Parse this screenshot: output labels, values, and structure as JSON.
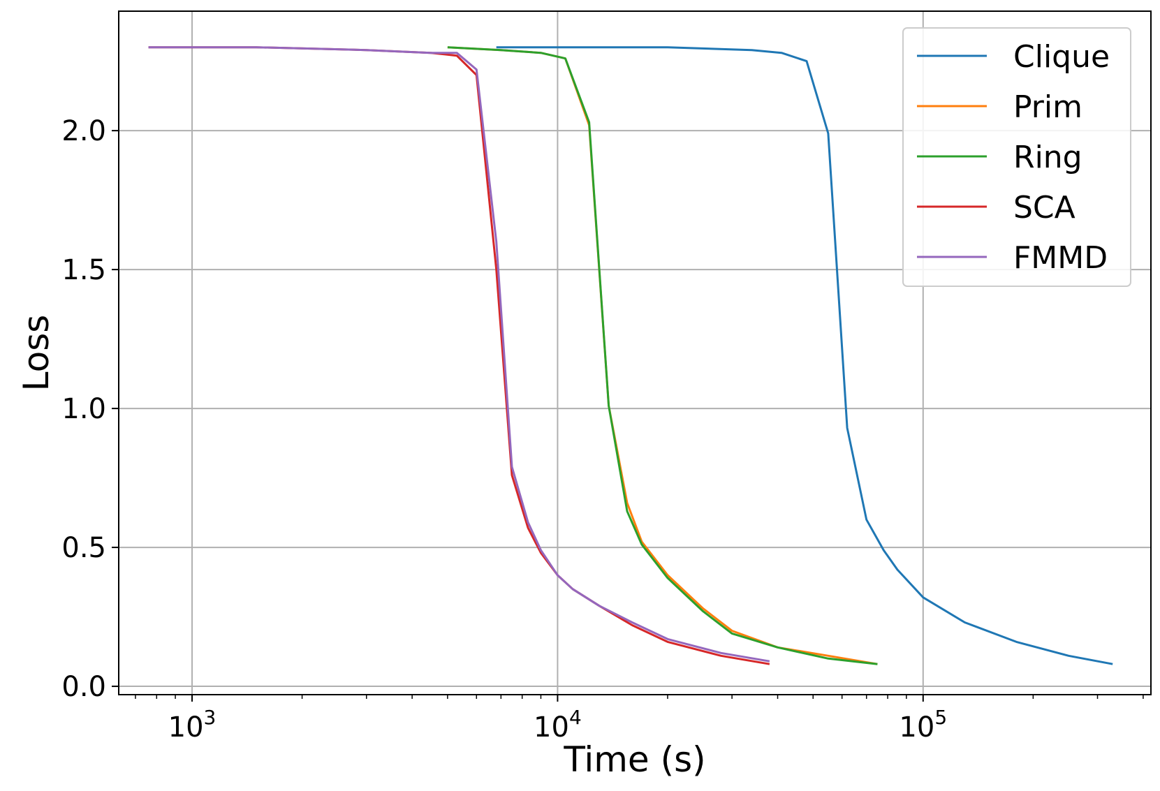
{
  "chart_data": {
    "type": "line",
    "title": "",
    "xlabel": "Time (s)",
    "ylabel": "Loss",
    "xscale": "log",
    "xlim": [
      630,
      420000
    ],
    "ylim": [
      -0.03,
      2.43
    ],
    "grid": true,
    "legend_position": "top-right",
    "x_ticks": [
      {
        "value": 1000,
        "base": "10",
        "exp": "3"
      },
      {
        "value": 10000,
        "base": "10",
        "exp": "4"
      },
      {
        "value": 100000,
        "base": "10",
        "exp": "5"
      }
    ],
    "y_ticks": [
      {
        "value": 0.0,
        "label": "0.0"
      },
      {
        "value": 0.5,
        "label": "0.5"
      },
      {
        "value": 1.0,
        "label": "1.0"
      },
      {
        "value": 1.5,
        "label": "1.5"
      },
      {
        "value": 2.0,
        "label": "2.0"
      }
    ],
    "series": [
      {
        "name": "Clique",
        "color": "#1f77b4",
        "x": [
          6800,
          10000,
          20000,
          34000,
          41000,
          48000,
          55000,
          62000,
          70000,
          78000,
          85000,
          100000,
          130000,
          180000,
          250000,
          330000
        ],
        "y": [
          2.3,
          2.3,
          2.3,
          2.29,
          2.28,
          2.25,
          1.99,
          0.93,
          0.6,
          0.49,
          0.42,
          0.32,
          0.23,
          0.16,
          0.11,
          0.08
        ]
      },
      {
        "name": "Prim",
        "color": "#ff7f0e",
        "x": [
          5000,
          7000,
          9000,
          10500,
          12200,
          13800,
          15500,
          17000,
          20000,
          25000,
          30000,
          40000,
          55000,
          75000
        ],
        "y": [
          2.3,
          2.29,
          2.28,
          2.26,
          2.02,
          1.01,
          0.66,
          0.52,
          0.4,
          0.28,
          0.2,
          0.14,
          0.11,
          0.08
        ]
      },
      {
        "name": "Ring",
        "color": "#2ca02c",
        "x": [
          5000,
          7000,
          9000,
          10500,
          12200,
          13800,
          15500,
          17000,
          20000,
          25000,
          30000,
          40000,
          55000,
          75000
        ],
        "y": [
          2.3,
          2.29,
          2.28,
          2.26,
          2.03,
          1.01,
          0.63,
          0.51,
          0.39,
          0.27,
          0.19,
          0.14,
          0.1,
          0.08
        ]
      },
      {
        "name": "SCA",
        "color": "#d62728",
        "x": [
          760,
          1500,
          3000,
          4500,
          5300,
          6000,
          6800,
          7500,
          8300,
          9000,
          10000,
          11000,
          13000,
          16000,
          20000,
          28000,
          38000
        ],
        "y": [
          2.3,
          2.3,
          2.29,
          2.28,
          2.27,
          2.2,
          1.5,
          0.76,
          0.57,
          0.48,
          0.4,
          0.35,
          0.29,
          0.22,
          0.16,
          0.11,
          0.08
        ]
      },
      {
        "name": "FMMD",
        "color": "#9467bd",
        "x": [
          760,
          1500,
          3000,
          4500,
          5300,
          6000,
          6800,
          7500,
          8300,
          9000,
          10000,
          11000,
          13000,
          16000,
          20000,
          28000,
          38000
        ],
        "y": [
          2.3,
          2.3,
          2.29,
          2.28,
          2.28,
          2.22,
          1.6,
          0.79,
          0.59,
          0.49,
          0.4,
          0.35,
          0.29,
          0.23,
          0.17,
          0.12,
          0.09
        ]
      }
    ]
  }
}
